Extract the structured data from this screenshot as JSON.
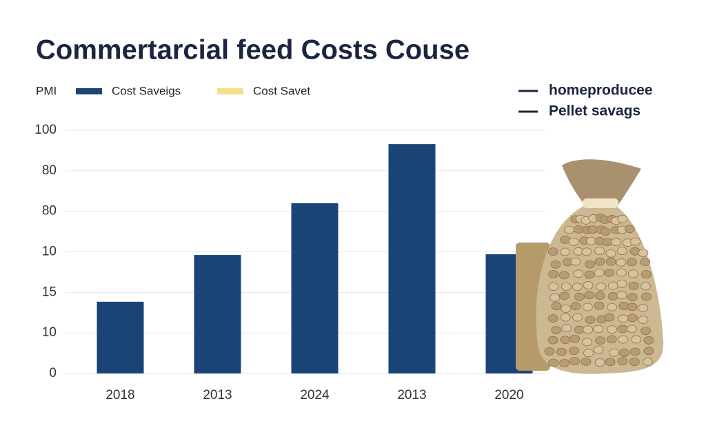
{
  "chart_data": {
    "type": "bar",
    "title": "Commertarcial feed Costs Couse",
    "legend": {
      "title": "PMI",
      "items": [
        {
          "name": "Cost Saveigs",
          "color": "#1b4476"
        },
        {
          "name": "Cost Savet",
          "color": "#f3e08a"
        }
      ]
    },
    "legend_right": {
      "items": [
        {
          "name": "homeproducee",
          "color": "#1a2540"
        },
        {
          "name": "Pellet savags",
          "color": "#1a2540"
        }
      ]
    },
    "categories": [
      "2018",
      "2013",
      "2024",
      "2013",
      "2020"
    ],
    "values": [
      29.5,
      48.7,
      70,
      94.3,
      49
    ],
    "color": "#1b4476",
    "ylim": [
      0,
      100
    ],
    "yticks": [
      0,
      {
        "value": 16.67,
        "label": "10"
      },
      {
        "value": 33.33,
        "label": "15"
      },
      {
        "value": 50,
        "label": "10"
      },
      {
        "value": 66.67,
        "label": "80"
      },
      {
        "value": 83.33,
        "label": "80"
      },
      100
    ],
    "grid": true
  }
}
